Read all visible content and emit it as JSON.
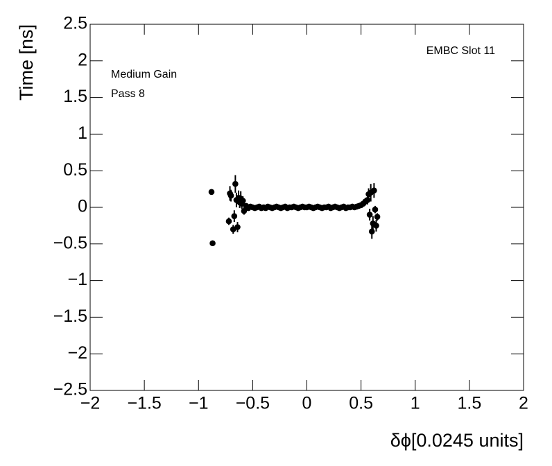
{
  "chart_data": {
    "type": "scatter",
    "x_label": "δϕ[0.0245 units]",
    "y_label": "Time [ns]",
    "annotations": [
      "EMBC Slot 11",
      "Medium Gain",
      "Pass 8"
    ],
    "xlim": [
      -2,
      2
    ],
    "ylim": [
      -2.5,
      2.5
    ],
    "xticks": [
      {
        "value": -2,
        "label": "−2"
      },
      {
        "value": -1.5,
        "label": "−1.5"
      },
      {
        "value": -1,
        "label": "−1"
      },
      {
        "value": -0.5,
        "label": "−0.5"
      },
      0,
      0.5,
      1,
      1.5,
      2
    ],
    "yticks": [
      {
        "value": -2.5,
        "label": "−2.5"
      },
      {
        "value": -2,
        "label": "−2"
      },
      {
        "value": -1.5,
        "label": "−1.5"
      },
      {
        "value": -1,
        "label": "−1"
      },
      {
        "value": -0.5,
        "label": "−0.5"
      },
      0,
      0.5,
      1,
      1.5,
      2,
      2.5
    ],
    "color": "#000000",
    "x": [
      -0.88,
      -0.87,
      -0.72,
      -0.71,
      -0.7,
      -0.68,
      -0.67,
      -0.66,
      -0.65,
      -0.64,
      -0.63,
      -0.62,
      -0.61,
      -0.6,
      -0.59,
      -0.58,
      -0.56,
      -0.54,
      -0.52,
      -0.5,
      -0.48,
      -0.46,
      -0.44,
      -0.42,
      -0.4,
      -0.38,
      -0.36,
      -0.34,
      -0.32,
      -0.3,
      -0.28,
      -0.26,
      -0.24,
      -0.22,
      -0.2,
      -0.18,
      -0.16,
      -0.14,
      -0.12,
      -0.1,
      -0.08,
      -0.06,
      -0.04,
      -0.02,
      0,
      0.02,
      0.04,
      0.06,
      0.08,
      0.1,
      0.12,
      0.14,
      0.16,
      0.18,
      0.2,
      0.22,
      0.24,
      0.26,
      0.28,
      0.3,
      0.32,
      0.34,
      0.36,
      0.38,
      0.4,
      0.42,
      0.44,
      0.46,
      0.48,
      0.5,
      0.52,
      0.54,
      0.56,
      0.57,
      0.58,
      0.59,
      0.6,
      0.61,
      0.62,
      0.63,
      0.64,
      0.65
    ],
    "values": [
      0.21,
      -0.49,
      -0.19,
      0.19,
      0.16,
      -0.3,
      -0.12,
      0.32,
      0.1,
      -0.27,
      0.13,
      0.07,
      0.12,
      0.05,
      0.09,
      -0.05,
      0.02,
      -0.01,
      0.01,
      0.0,
      -0.01,
      0.0,
      0.01,
      -0.01,
      0.0,
      -0.01,
      0.01,
      0.0,
      -0.01,
      0.0,
      0.01,
      0.0,
      -0.01,
      0.0,
      0.01,
      -0.01,
      0.0,
      0.0,
      0.01,
      0.0,
      -0.01,
      0.0,
      0.01,
      0.0,
      0.0,
      0.01,
      0.0,
      -0.01,
      0.0,
      0.01,
      0.0,
      -0.01,
      0.0,
      0.0,
      0.01,
      -0.01,
      0.0,
      0.01,
      0.0,
      -0.01,
      0.0,
      0.01,
      -0.01,
      0.0,
      0.0,
      0.01,
      0.0,
      0.01,
      0.02,
      0.03,
      0.05,
      0.08,
      0.1,
      0.18,
      -0.1,
      0.2,
      -0.33,
      -0.22,
      0.23,
      -0.03,
      -0.25,
      -0.13
    ],
    "errors": [
      0.02,
      0.02,
      0.05,
      0.1,
      0.08,
      0.06,
      0.08,
      0.12,
      0.1,
      0.07,
      0.1,
      0.08,
      0.1,
      0.07,
      0.06,
      0.05,
      0.03,
      0.02,
      0.02,
      0.02,
      0.02,
      0.01,
      0.01,
      0.01,
      0.01,
      0.01,
      0.01,
      0.01,
      0.01,
      0.01,
      0.01,
      0.01,
      0.01,
      0.01,
      0.01,
      0.01,
      0.01,
      0.01,
      0.01,
      0.01,
      0.01,
      0.01,
      0.01,
      0.01,
      0.01,
      0.01,
      0.01,
      0.01,
      0.01,
      0.01,
      0.01,
      0.01,
      0.01,
      0.01,
      0.01,
      0.01,
      0.01,
      0.01,
      0.01,
      0.01,
      0.01,
      0.01,
      0.01,
      0.01,
      0.02,
      0.02,
      0.02,
      0.02,
      0.03,
      0.03,
      0.04,
      0.05,
      0.06,
      0.08,
      0.08,
      0.12,
      0.1,
      0.1,
      0.1,
      0.05,
      0.08,
      0.05
    ]
  }
}
